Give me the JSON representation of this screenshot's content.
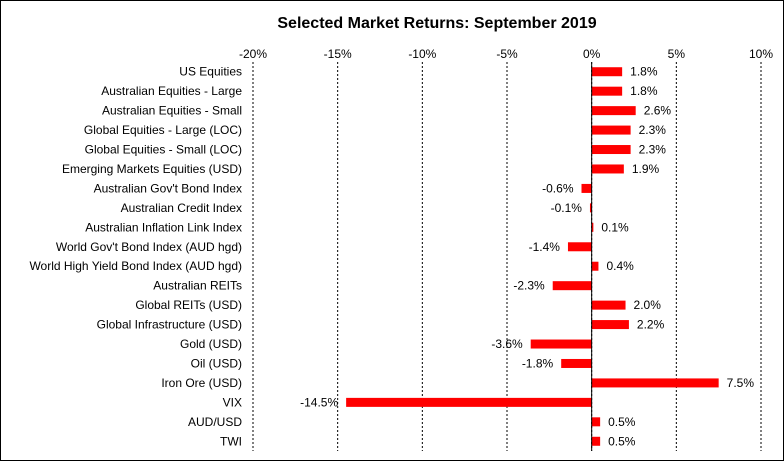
{
  "chart_data": {
    "type": "bar",
    "orientation": "horizontal",
    "title": "Selected Market Returns: September 2019",
    "xlim": [
      -20,
      10
    ],
    "x_ticks": [
      "-20%",
      "-15%",
      "-10%",
      "-5%",
      "0%",
      "5%",
      "10%"
    ],
    "x_axis_position": "top",
    "grid": "vertical dashed",
    "bar_color": "#ff0000",
    "categories": [
      "US Equities",
      "Australian Equities - Large",
      "Australian Equities - Small",
      "Global Equities - Large (LOC)",
      "Global Equities - Small (LOC)",
      "Emerging Markets Equities (USD)",
      "Australian Gov't Bond Index",
      "Australian Credit Index",
      "Australian Inflation Link Index",
      "World Gov't Bond Index (AUD hgd)",
      "World High Yield Bond Index (AUD hgd)",
      "Australian REITs",
      "Global REITs (USD)",
      "Global Infrastructure (USD)",
      "Gold (USD)",
      "Oil (USD)",
      "Iron Ore (USD)",
      "VIX",
      "AUD/USD",
      "TWI"
    ],
    "values": [
      1.8,
      1.8,
      2.6,
      2.3,
      2.3,
      1.9,
      -0.6,
      -0.1,
      0.1,
      -1.4,
      0.4,
      -2.3,
      2.0,
      2.2,
      -3.6,
      -1.8,
      7.5,
      -14.5,
      0.5,
      0.5
    ],
    "data_labels": [
      "1.8%",
      "1.8%",
      "2.6%",
      "2.3%",
      "2.3%",
      "1.9%",
      "-0.6%",
      "-0.1%",
      "0.1%",
      "-1.4%",
      "0.4%",
      "-2.3%",
      "2.0%",
      "2.2%",
      "-3.6%",
      "-1.8%",
      "7.5%",
      "-14.5%",
      "0.5%",
      "0.5%"
    ]
  }
}
